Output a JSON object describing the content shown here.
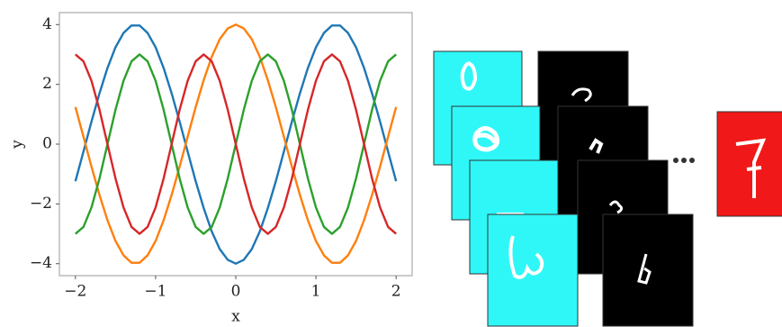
{
  "chart_data": {
    "type": "line",
    "x_label": "x",
    "y_label": "y",
    "x": [
      -2,
      -1.9,
      -1.8,
      -1.7,
      -1.6,
      -1.5,
      -1.4,
      -1.3,
      -1.2,
      -1.1,
      -1,
      -0.9,
      -0.8,
      -0.7,
      -0.6,
      -0.5,
      -0.4,
      -0.3,
      -0.2,
      -0.1,
      0,
      0.1,
      0.2,
      0.3,
      0.4,
      0.5,
      0.6,
      0.7,
      0.8,
      0.9,
      1,
      1.1,
      1.2,
      1.3,
      1.4,
      1.5,
      1.6,
      1.7,
      1.8,
      1.9,
      2
    ],
    "series": [
      {
        "color": "#1f77b4",
        "values": [
          -1.24,
          -0.25,
          0.75,
          1.7,
          2.55,
          3.24,
          3.72,
          3.97,
          3.97,
          3.72,
          3.24,
          2.55,
          1.7,
          0.75,
          -0.25,
          -1.24,
          -2.14,
          -2.92,
          -3.51,
          -3.87,
          -4,
          -3.87,
          -3.51,
          -2.92,
          -2.14,
          -1.24,
          -0.25,
          0.75,
          1.7,
          2.55,
          3.24,
          3.72,
          3.97,
          3.97,
          3.72,
          3.24,
          2.55,
          1.7,
          0.75,
          -0.25,
          -1.24
        ]
      },
      {
        "color": "#ff7f0e",
        "values": [
          1.24,
          0.25,
          -0.75,
          -1.7,
          -2.55,
          -3.24,
          -3.72,
          -3.97,
          -3.97,
          -3.72,
          -3.24,
          -2.55,
          -1.7,
          -0.75,
          0.25,
          1.24,
          2.14,
          2.92,
          3.51,
          3.87,
          4,
          3.87,
          3.51,
          2.92,
          2.14,
          1.24,
          0.25,
          -0.75,
          -1.7,
          -2.55,
          -3.24,
          -3.72,
          -3.97,
          -3.97,
          -3.72,
          -3.24,
          -2.55,
          -1.7,
          -0.75,
          0.25,
          1.24
        ]
      },
      {
        "color": "#2ca02c",
        "values": [
          -3,
          -2.77,
          -2.12,
          -1.15,
          0,
          1.15,
          2.12,
          2.77,
          3,
          2.77,
          2.12,
          1.15,
          0,
          -1.15,
          -2.12,
          -2.77,
          -3,
          -2.77,
          -2.12,
          -1.15,
          0,
          1.15,
          2.12,
          2.77,
          3,
          2.77,
          2.12,
          1.15,
          0,
          -1.15,
          -2.12,
          -2.77,
          -3,
          -2.77,
          -2.12,
          -1.15,
          0,
          1.15,
          2.12,
          2.77,
          3
        ]
      },
      {
        "color": "#d62728",
        "values": [
          3,
          2.77,
          2.12,
          1.15,
          0,
          -1.15,
          -2.12,
          -2.77,
          -3,
          -2.77,
          -2.12,
          -1.15,
          0,
          1.15,
          2.12,
          2.77,
          3,
          2.77,
          2.12,
          1.15,
          0,
          -1.15,
          -2.12,
          -2.77,
          -3,
          -2.77,
          -2.12,
          -1.15,
          0,
          1.15,
          2.12,
          2.77,
          3,
          2.77,
          2.12,
          1.15,
          0,
          -1.15,
          -2.12,
          -2.77,
          -3
        ]
      }
    ],
    "xlim": [
      -2.2,
      2.2
    ],
    "ylim": [
      -4.4,
      4.4
    ],
    "xticks": [
      {
        "value": -2,
        "label": "−2"
      },
      {
        "value": -1,
        "label": "−1"
      },
      0,
      1,
      2
    ],
    "yticks": [
      {
        "value": -4,
        "label": "−4"
      },
      {
        "value": -2,
        "label": "−2"
      },
      0,
      2,
      4
    ],
    "grid": false
  }
}
